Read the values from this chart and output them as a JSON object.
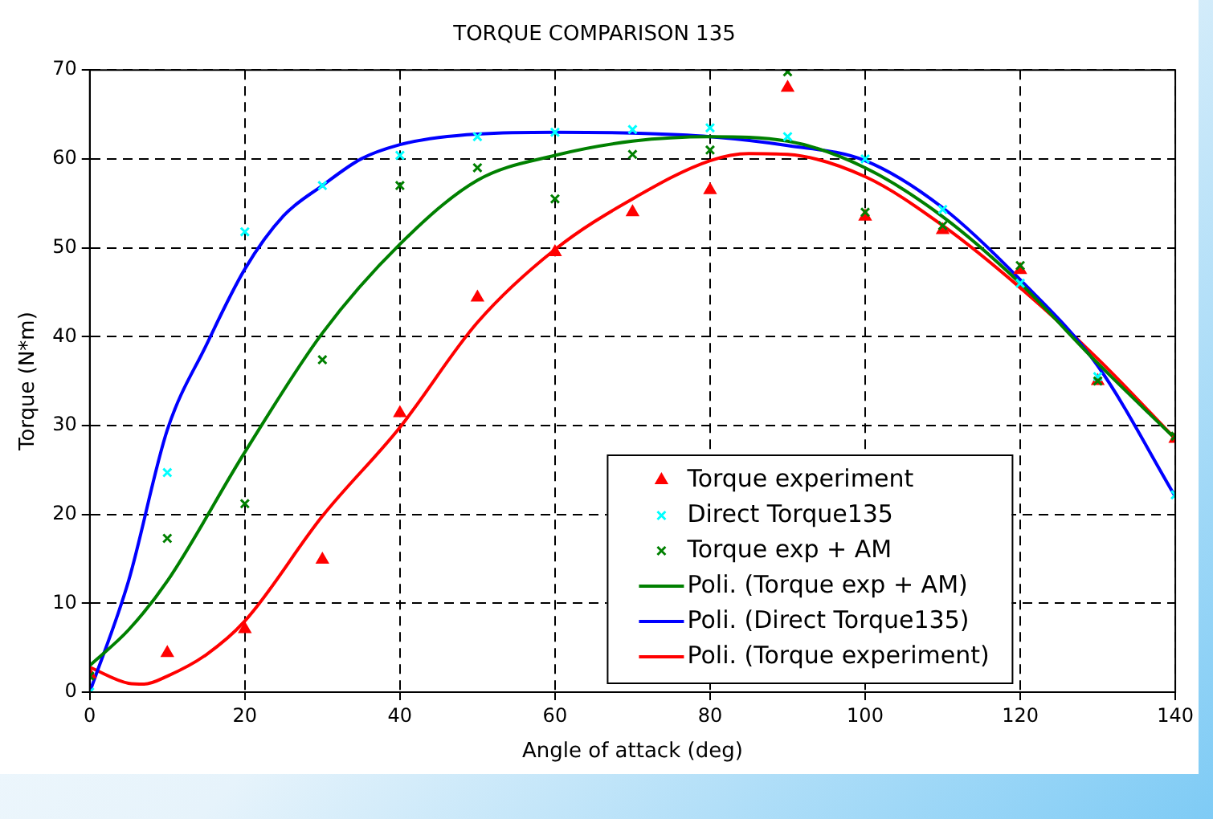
{
  "chart_data": {
    "type": "scatter",
    "title": "TORQUE COMPARISON 135",
    "xlabel": "Angle of attack (deg)",
    "ylabel": "Torque (N*m)",
    "xlim": [
      0,
      140
    ],
    "xticks": [
      0,
      20,
      40,
      60,
      80,
      100,
      120,
      140
    ],
    "ylim": [
      0,
      70
    ],
    "yticks": [
      0,
      10,
      20,
      30,
      40,
      50,
      60,
      70
    ],
    "grid": true,
    "legend": "bottom",
    "series": [
      {
        "name": "Torque experiment",
        "type": "scatter",
        "marker": "triangle",
        "color": "#ff0000",
        "x": [
          0,
          10,
          20,
          30,
          40,
          50,
          60,
          70,
          80,
          90,
          100,
          110,
          120,
          130,
          140
        ],
        "values": [
          2,
          4.4,
          7.1,
          14.9,
          31.4,
          44.4,
          49.5,
          54,
          56.5,
          68,
          53.5,
          52,
          47.5,
          35,
          28.5
        ]
      },
      {
        "name": "Direct Torque135",
        "type": "scatter",
        "marker": "cross",
        "color": "#00ffff",
        "x": [
          0,
          10,
          20,
          30,
          40,
          50,
          60,
          70,
          80,
          90,
          100,
          110,
          120,
          130,
          140
        ],
        "values": [
          0,
          24.7,
          51.8,
          57,
          60.4,
          62.5,
          63,
          63.3,
          63.5,
          62.5,
          60,
          54.3,
          46,
          35.5,
          22.2
        ]
      },
      {
        "name": "Torque exp + AM",
        "type": "scatter",
        "marker": "cross",
        "color": "#008000",
        "x": [
          0,
          10,
          20,
          30,
          40,
          50,
          60,
          70,
          80,
          90,
          100,
          110,
          120,
          130,
          140
        ],
        "values": [
          1.8,
          17.3,
          21.2,
          37.4,
          57,
          59,
          55.5,
          60.5,
          61,
          69.8,
          54,
          52.5,
          48,
          35,
          28.8
        ]
      },
      {
        "name": "Poli. (Torque exp + AM)",
        "type": "line",
        "marker": "none",
        "color": "#008000",
        "x": [
          0,
          5,
          10,
          20,
          30,
          40,
          50,
          60,
          70,
          80,
          90,
          100,
          110,
          120,
          130,
          140
        ],
        "values": [
          3,
          7,
          12.5,
          27,
          40.4,
          50.4,
          57.6,
          60.4,
          62,
          62.5,
          62,
          59,
          53.5,
          46,
          37,
          28.5
        ]
      },
      {
        "name": "Poli. (Direct Torque135)",
        "type": "line",
        "marker": "none",
        "color": "#0000ff",
        "x": [
          0,
          5,
          10,
          15,
          20,
          25,
          30,
          35,
          40,
          45,
          50,
          60,
          70,
          80,
          90,
          100,
          110,
          120,
          130,
          140
        ],
        "values": [
          0,
          12.5,
          29.5,
          39,
          47.6,
          53.6,
          57,
          60,
          61.6,
          62.4,
          62.8,
          63,
          62.9,
          62.5,
          61.5,
          59.8,
          54.5,
          46.4,
          36.7,
          22
        ]
      },
      {
        "name": "Poli. (Torque experiment)",
        "type": "line",
        "marker": "none",
        "color": "#ff0000",
        "x": [
          0,
          5,
          7,
          10,
          15,
          20,
          30,
          40,
          50,
          60,
          70,
          80,
          85,
          90,
          100,
          110,
          120,
          130,
          140
        ],
        "values": [
          2.8,
          1,
          0.9,
          1.8,
          4.2,
          8,
          19.8,
          29.8,
          41.6,
          49.8,
          55.5,
          59.8,
          60.6,
          60.5,
          58,
          52.5,
          45.5,
          37.5,
          28.5
        ]
      }
    ]
  }
}
